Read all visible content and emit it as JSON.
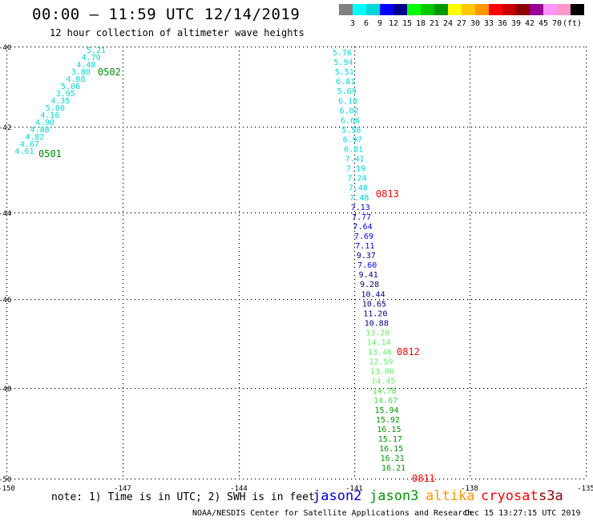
{
  "header": {
    "title": "00:00 – 11:59 UTC 12/14/2019",
    "subtitle": "12 hour collection of altimeter wave heights"
  },
  "scale": {
    "colors": [
      "#808080",
      "#00ffff",
      "#00d8d8",
      "#0000ff",
      "#00008c",
      "#00ff00",
      "#00c800",
      "#009600",
      "#ffff00",
      "#ffc800",
      "#ff9600",
      "#ff0000",
      "#c80000",
      "#8c0000",
      "#960096",
      "#ff96ff",
      "#ff96c8",
      "#000000"
    ],
    "labels": [
      "3",
      "6",
      "9",
      "12",
      "15",
      "18",
      "21",
      "24",
      "27",
      "30",
      "33",
      "36",
      "39",
      "42",
      "45",
      "70",
      "(ft)"
    ]
  },
  "axes": {
    "lat_labels": [
      "-40",
      "-42",
      "-44",
      "-46",
      "-48",
      "-50"
    ],
    "lon_labels": [
      "-150",
      "-147",
      "-144",
      "-141",
      "-138",
      "-135"
    ]
  },
  "passes": [
    {
      "label": "0502",
      "color": "#008c00"
    },
    {
      "label": "0501",
      "color": "#008c00"
    },
    {
      "label": "0813",
      "color": "#ff0000"
    },
    {
      "label": "0812",
      "color": "#ff0000"
    },
    {
      "label": "0811",
      "color": "#ff0000"
    }
  ],
  "tracks": {
    "track_0501": {
      "values": [
        "5.21",
        "4.79",
        "4.48",
        "3.80",
        "4.08",
        "5.06",
        "3.95",
        "4.35",
        "5.00",
        "4.16",
        "4.90",
        "4.88",
        "4.82",
        "4.67",
        "4.61"
      ],
      "color": "#00d8d8"
    },
    "track_jason": [
      {
        "v": "5.76",
        "c": "#00d8d8"
      },
      {
        "v": "5.94",
        "c": "#00d8d8"
      },
      {
        "v": "5.51",
        "c": "#00d8d8"
      },
      {
        "v": "6.81",
        "c": "#00d8d8"
      },
      {
        "v": "5.69",
        "c": "#00d8d8"
      },
      {
        "v": "6.10",
        "c": "#00d8d8"
      },
      {
        "v": "6.02",
        "c": "#00d8d8"
      },
      {
        "v": "6.66",
        "c": "#00d8d8"
      },
      {
        "v": "5.58",
        "c": "#00d8d8"
      },
      {
        "v": "6.97",
        "c": "#00d8d8"
      },
      {
        "v": "6.81",
        "c": "#00d8d8"
      },
      {
        "v": "7.41",
        "c": "#00d8d8"
      },
      {
        "v": "7.19",
        "c": "#00d8d8"
      },
      {
        "v": "7.24",
        "c": "#00d8d8"
      },
      {
        "v": "7.48",
        "c": "#00d8d8"
      },
      {
        "v": "7.48",
        "c": "#00d8d8"
      },
      {
        "v": "7.13",
        "c": "#0000ff"
      },
      {
        "v": "7.77",
        "c": "#0000ff"
      },
      {
        "v": "7.64",
        "c": "#0000ff"
      },
      {
        "v": "7.69",
        "c": "#0000ff"
      },
      {
        "v": "7.11",
        "c": "#0000ff"
      },
      {
        "v": "9.37",
        "c": "#00008c"
      },
      {
        "v": "7.60",
        "c": "#0000ff"
      },
      {
        "v": "9.41",
        "c": "#00008c"
      },
      {
        "v": "9.28",
        "c": "#00008c"
      },
      {
        "v": "10.44",
        "c": "#00008c"
      },
      {
        "v": "10.65",
        "c": "#00008c"
      },
      {
        "v": "11.20",
        "c": "#00008c"
      },
      {
        "v": "10.88",
        "c": "#00008c"
      },
      {
        "v": "13.20",
        "c": "#66ee66"
      },
      {
        "v": "14.14",
        "c": "#66ee66"
      },
      {
        "v": "13.46",
        "c": "#66ee66"
      },
      {
        "v": "12.59",
        "c": "#66ee66"
      },
      {
        "v": "13.00",
        "c": "#66ee66"
      },
      {
        "v": "14.45",
        "c": "#66ee66"
      },
      {
        "v": "14.78",
        "c": "#44dd44"
      },
      {
        "v": "14.67",
        "c": "#44dd44"
      },
      {
        "v": "15.94",
        "c": "#009600"
      },
      {
        "v": "15.92",
        "c": "#009600"
      },
      {
        "v": "16.15",
        "c": "#009600"
      },
      {
        "v": "15.17",
        "c": "#009600"
      },
      {
        "v": "16.15",
        "c": "#009600"
      },
      {
        "v": "16.21",
        "c": "#009600"
      },
      {
        "v": "16.21",
        "c": "#009600"
      }
    ]
  },
  "footer": {
    "note": "note: 1) Time is in UTC; 2) SWH is in feet",
    "satellites": [
      {
        "name": "jason2",
        "color": "#0000dd"
      },
      {
        "name": "jason3",
        "color": "#009600"
      },
      {
        "name": "altika",
        "color": "#ff9600"
      },
      {
        "name": "cryosat",
        "color": "#ff0000"
      },
      {
        "name": "s3a",
        "color": "#8c0000"
      }
    ],
    "credit": "NOAA/NESDIS Center for Satellite Applications and Research",
    "timestamp": "Dec 15 13:27:15 UTC 2019"
  }
}
